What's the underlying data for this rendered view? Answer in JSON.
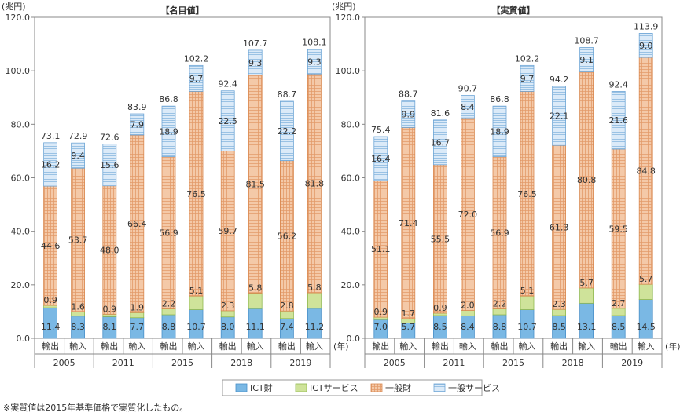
{
  "note": "※実質値は2015年基準価格で実質化したもの。",
  "legend": [
    {
      "label": "ICT財",
      "color": "#7ab8e4",
      "pattern": "none"
    },
    {
      "label": "ICTサービス",
      "color": "#cfe39a",
      "pattern": "none"
    },
    {
      "label": "一般財",
      "color": "#f4c9a8",
      "pattern": "grid"
    },
    {
      "label": "一般サービス",
      "color": "#cfe3f5",
      "pattern": "hline"
    }
  ],
  "chart_data": [
    {
      "type": "bar",
      "stacked": true,
      "title": "【名目値】",
      "ylabel": "(兆円)",
      "xunit": "(年)",
      "ylim": [
        0,
        120
      ],
      "yticks": [
        "0.0",
        "20.0",
        "40.0",
        "60.0",
        "80.0",
        "100.0",
        "120.0"
      ],
      "years": [
        "2005",
        "2011",
        "2015",
        "2018",
        "2019"
      ],
      "bar_labels": [
        "輸出",
        "輸入"
      ],
      "series_names": [
        "ICT財",
        "ICTサービス",
        "一般財",
        "一般サービス"
      ],
      "groups": [
        {
          "year": "2005",
          "bars": [
            {
              "label": "輸出",
              "values": [
                11.4,
                0.9,
                44.6,
                16.2
              ],
              "labels": [
                "11.4",
                "0.9",
                "44.6",
                "16.2"
              ],
              "total": "73.1"
            },
            {
              "label": "輸入",
              "values": [
                8.3,
                1.6,
                53.7,
                9.4
              ],
              "labels": [
                "8.3",
                "1.6",
                "53.7",
                "9.4"
              ],
              "total": "72.9"
            }
          ]
        },
        {
          "year": "2011",
          "bars": [
            {
              "label": "輸出",
              "values": [
                8.1,
                0.9,
                48.0,
                15.6
              ],
              "labels": [
                "8.1",
                "0.9",
                "48.0",
                "15.6"
              ],
              "total": "72.6"
            },
            {
              "label": "輸入",
              "values": [
                7.7,
                1.9,
                66.4,
                7.9
              ],
              "labels": [
                "7.7",
                "1.9",
                "66.4",
                "7.9"
              ],
              "total": "83.9"
            }
          ]
        },
        {
          "year": "2015",
          "bars": [
            {
              "label": "輸出",
              "values": [
                8.8,
                2.2,
                56.9,
                18.9
              ],
              "labels": [
                "8.8",
                "2.2",
                "56.9",
                "18.9"
              ],
              "total": "86.8"
            },
            {
              "label": "輸入",
              "values": [
                10.7,
                5.1,
                76.5,
                9.7
              ],
              "labels": [
                "10.7",
                "5.1",
                "76.5",
                "9.7"
              ],
              "total": "102.2"
            }
          ]
        },
        {
          "year": "2018",
          "bars": [
            {
              "label": "輸出",
              "values": [
                8.0,
                2.3,
                59.7,
                22.5
              ],
              "labels": [
                "8.0",
                "2.3",
                "59.7",
                "22.5"
              ],
              "total": "92.4"
            },
            {
              "label": "輸入",
              "values": [
                11.1,
                5.8,
                81.5,
                9.3
              ],
              "labels": [
                "11.1",
                "5.8",
                "81.5",
                "9.3"
              ],
              "total": "107.7"
            }
          ]
        },
        {
          "year": "2019",
          "bars": [
            {
              "label": "輸出",
              "values": [
                7.4,
                2.8,
                56.2,
                22.2
              ],
              "labels": [
                "7.4",
                "2.8",
                "56.2",
                "22.2"
              ],
              "total": "88.7"
            },
            {
              "label": "輸入",
              "values": [
                11.2,
                5.8,
                81.8,
                9.3
              ],
              "labels": [
                "11.2",
                "5.8",
                "81.8",
                "9.3"
              ],
              "total": "108.1"
            }
          ]
        }
      ]
    },
    {
      "type": "bar",
      "stacked": true,
      "title": "【実質値】",
      "ylabel": "(兆円)",
      "xunit": "(年)",
      "ylim": [
        0,
        120
      ],
      "yticks": [
        "0.0",
        "20.0",
        "40.0",
        "60.0",
        "80.0",
        "100.0",
        "120.0"
      ],
      "years": [
        "2005",
        "2011",
        "2015",
        "2018",
        "2019"
      ],
      "bar_labels": [
        "輸出",
        "輸入"
      ],
      "series_names": [
        "ICT財",
        "ICTサービス",
        "一般財",
        "一般サービス"
      ],
      "groups": [
        {
          "year": "2005",
          "bars": [
            {
              "label": "輸出",
              "values": [
                7.0,
                0.9,
                51.1,
                16.4
              ],
              "labels": [
                "7.0",
                "0.9",
                "51.1",
                "16.4"
              ],
              "total": "75.4"
            },
            {
              "label": "輸入",
              "values": [
                5.7,
                1.7,
                71.4,
                9.9
              ],
              "labels": [
                "5.7",
                "1.7",
                "71.4",
                "9.9"
              ],
              "total": "88.7"
            }
          ]
        },
        {
          "year": "2011",
          "bars": [
            {
              "label": "輸出",
              "values": [
                8.5,
                0.9,
                55.5,
                16.7
              ],
              "labels": [
                "8.5",
                "0.9",
                "55.5",
                "16.7"
              ],
              "total": "81.6"
            },
            {
              "label": "輸入",
              "values": [
                8.4,
                2.0,
                72.0,
                8.4
              ],
              "labels": [
                "8.4",
                "2.0",
                "72.0",
                "8.4"
              ],
              "total": "90.7"
            }
          ]
        },
        {
          "year": "2015",
          "bars": [
            {
              "label": "輸出",
              "values": [
                8.8,
                2.2,
                56.9,
                18.9
              ],
              "labels": [
                "8.8",
                "2.2",
                "56.9",
                "18.9"
              ],
              "total": "86.8"
            },
            {
              "label": "輸入",
              "values": [
                10.7,
                5.1,
                76.5,
                9.7
              ],
              "labels": [
                "10.7",
                "5.1",
                "76.5",
                "9.7"
              ],
              "total": "102.2"
            }
          ]
        },
        {
          "year": "2018",
          "bars": [
            {
              "label": "輸出",
              "values": [
                8.5,
                2.3,
                61.3,
                22.1
              ],
              "labels": [
                "8.5",
                "2.3",
                "61.3",
                "22.1"
              ],
              "total": "94.2"
            },
            {
              "label": "輸入",
              "values": [
                13.1,
                5.7,
                80.8,
                9.1
              ],
              "labels": [
                "13.1",
                "5.7",
                "80.8",
                "9.1"
              ],
              "total": "108.7"
            }
          ]
        },
        {
          "year": "2019",
          "bars": [
            {
              "label": "輸出",
              "values": [
                8.5,
                2.7,
                59.5,
                21.6
              ],
              "labels": [
                "8.5",
                "2.7",
                "59.5",
                "21.6"
              ],
              "total": "92.4"
            },
            {
              "label": "輸入",
              "values": [
                14.5,
                5.7,
                84.8,
                9.0
              ],
              "labels": [
                "14.5",
                "5.7",
                "84.8",
                "9.0"
              ],
              "total": "113.9"
            }
          ]
        }
      ]
    }
  ]
}
